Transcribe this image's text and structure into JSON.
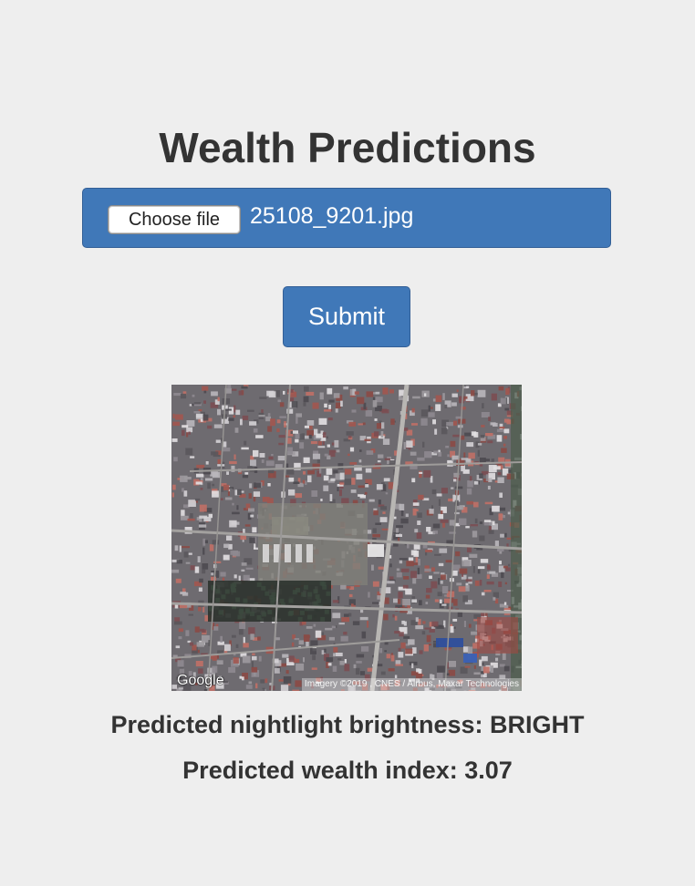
{
  "header": {
    "title": "Wealth Predictions"
  },
  "upload": {
    "choose_label": "Choose file",
    "file_name": "25108_9201.jpg"
  },
  "form": {
    "submit_label": "Submit"
  },
  "image": {
    "logo_text": "Google",
    "credit_text": "Imagery ©2019 , CNES / Airbus, Maxar Technologies"
  },
  "results": {
    "brightness_label": "Predicted nightlight brightness: ",
    "brightness_value": "BRIGHT",
    "wealth_label": "Predicted wealth index: ",
    "wealth_value": "3.07"
  },
  "colors": {
    "background": "#eeeeee",
    "accent": "#4078b8",
    "text": "#333333"
  }
}
